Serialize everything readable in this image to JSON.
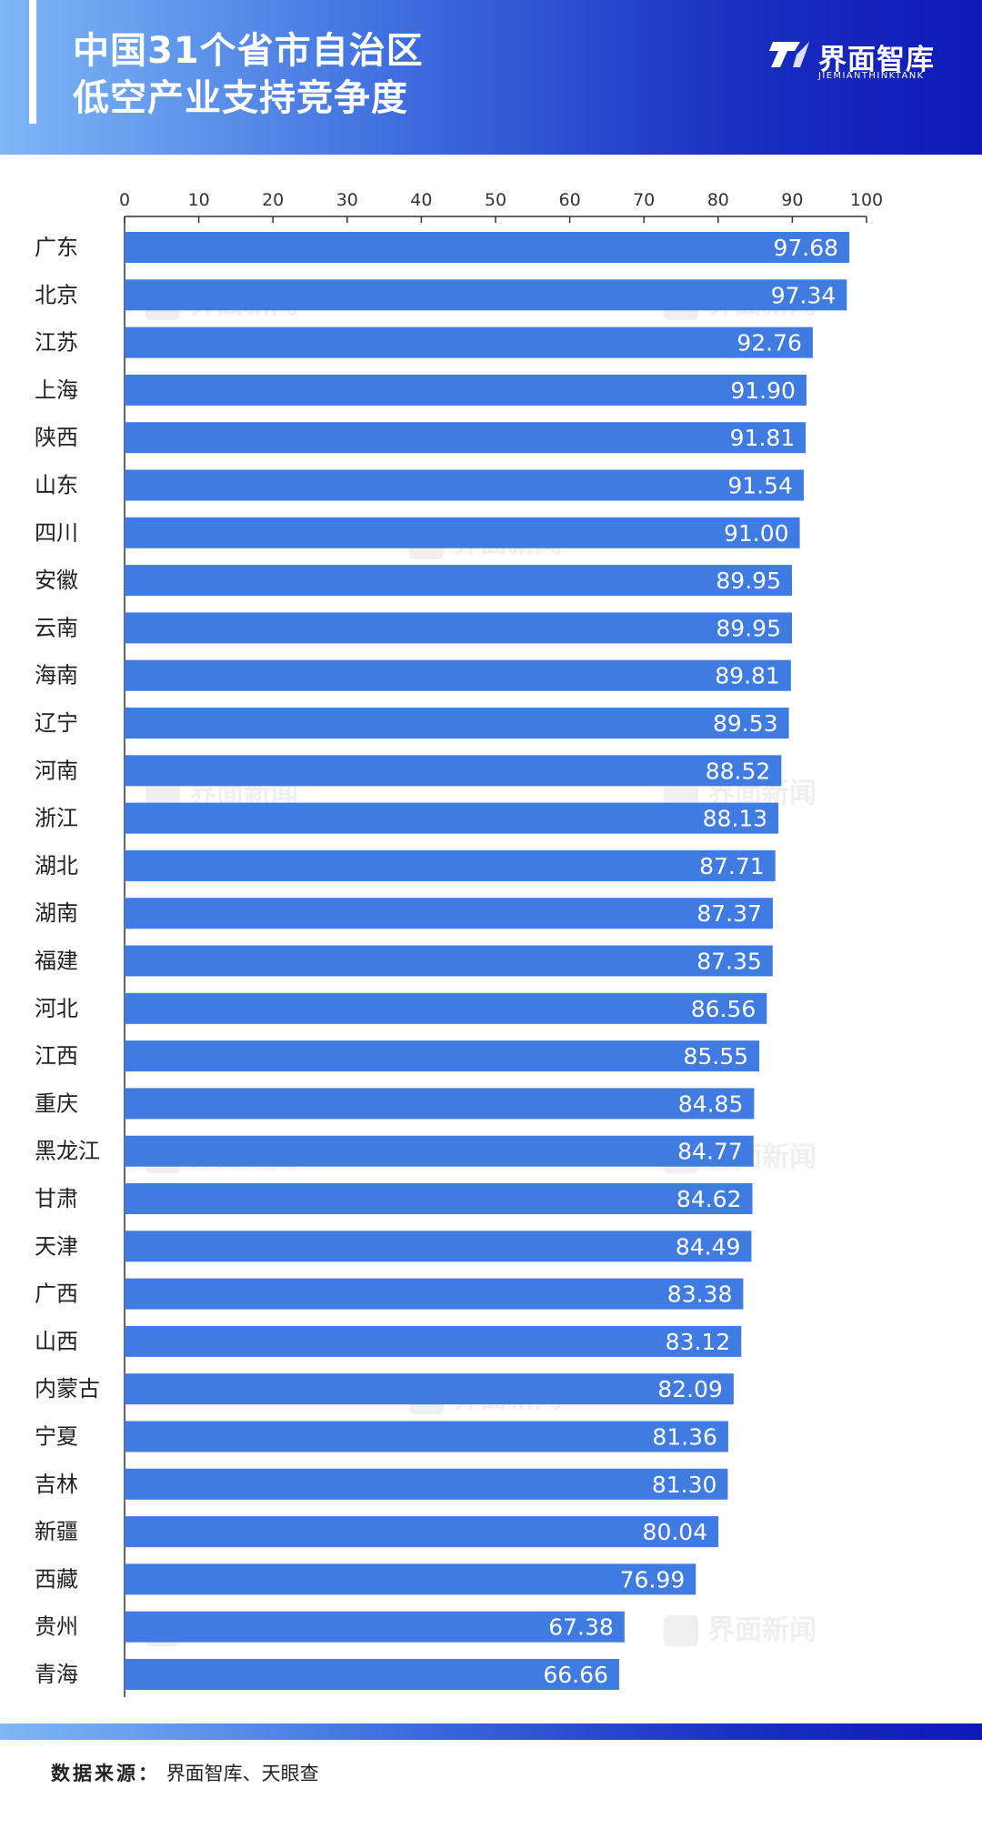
{
  "header": {
    "title_line1": "中国31个省市自治区",
    "title_line2": "低空产业支持竞争度",
    "logo_name": "界面智库",
    "logo_sub": "JIEMIANTHINKTANK"
  },
  "watermark_text": "界面新闻",
  "footer": {
    "source_label": "数据来源：",
    "source_value": "界面智库、天眼查"
  },
  "colors": {
    "bar": "#3f7be0",
    "accent": "#1a2fc2"
  },
  "chart_data": {
    "type": "bar",
    "orientation": "horizontal",
    "title": "中国31个省市自治区低空产业支持竞争度",
    "xlim": [
      0,
      100
    ],
    "xticks": [
      0,
      10,
      20,
      30,
      40,
      50,
      60,
      70,
      80,
      90,
      100
    ],
    "categories": [
      "广东",
      "北京",
      "江苏",
      "上海",
      "陕西",
      "山东",
      "四川",
      "安徽",
      "云南",
      "海南",
      "辽宁",
      "河南",
      "浙江",
      "湖北",
      "湖南",
      "福建",
      "河北",
      "江西",
      "重庆",
      "黑龙江",
      "甘肃",
      "天津",
      "广西",
      "山西",
      "内蒙古",
      "宁夏",
      "吉林",
      "新疆",
      "西藏",
      "贵州",
      "青海"
    ],
    "values": [
      97.68,
      97.34,
      92.76,
      91.9,
      91.81,
      91.54,
      91.0,
      89.95,
      89.95,
      89.81,
      89.53,
      88.52,
      88.13,
      87.71,
      87.37,
      87.35,
      86.56,
      85.55,
      84.85,
      84.77,
      84.62,
      84.49,
      83.38,
      83.12,
      82.09,
      81.36,
      81.3,
      80.04,
      76.99,
      67.38,
      66.66
    ],
    "value_labels": [
      "97.68",
      "97.34",
      "92.76",
      "91.90",
      "91.81",
      "91.54",
      "91.00",
      "89.95",
      "89.95",
      "89.81",
      "89.53",
      "88.52",
      "88.13",
      "87.71",
      "87.37",
      "87.35",
      "86.56",
      "85.55",
      "84.85",
      "84.77",
      "84.62",
      "84.49",
      "83.38",
      "83.12",
      "82.09",
      "81.36",
      "81.30",
      "80.04",
      "76.99",
      "67.38",
      "66.66"
    ],
    "grid": false,
    "legend": "none"
  }
}
